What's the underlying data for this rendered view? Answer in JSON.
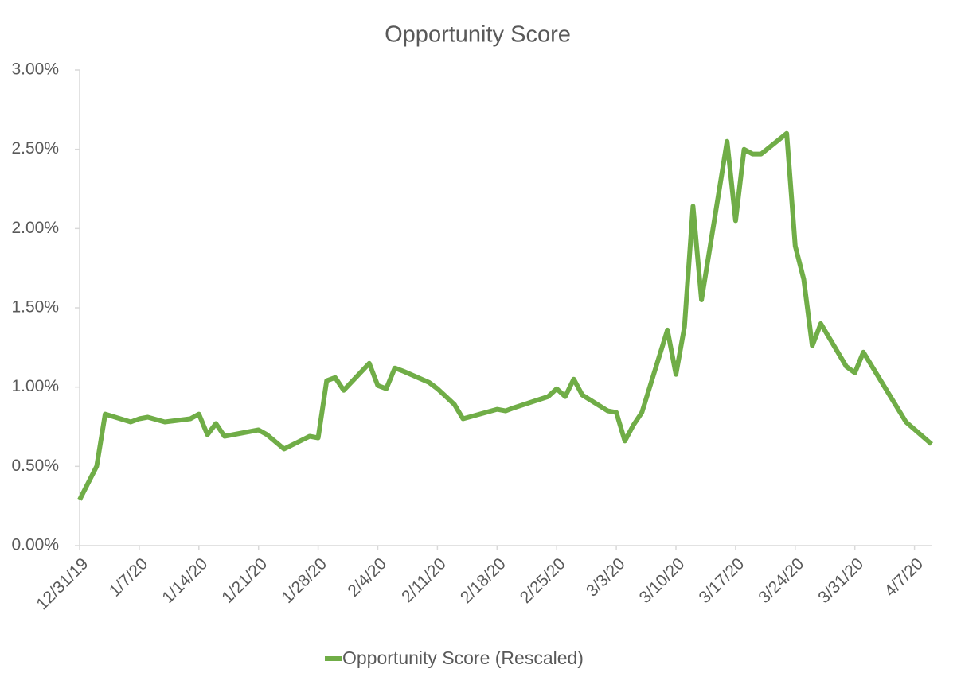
{
  "chart_data": {
    "type": "line",
    "title": "Opportunity Score",
    "x": [
      "12/31/19",
      "1/2/20",
      "1/3/20",
      "1/6/20",
      "1/7/20",
      "1/8/20",
      "1/10/20",
      "1/13/20",
      "1/14/20",
      "1/15/20",
      "1/16/20",
      "1/17/20",
      "1/21/20",
      "1/22/20",
      "1/24/20",
      "1/27/20",
      "1/28/20",
      "1/29/20",
      "1/30/20",
      "1/31/20",
      "2/3/20",
      "2/4/20",
      "2/5/20",
      "2/6/20",
      "2/7/20",
      "2/10/20",
      "2/11/20",
      "2/12/20",
      "2/13/20",
      "2/14/20",
      "2/18/20",
      "2/19/20",
      "2/20/20",
      "2/24/20",
      "2/25/20",
      "2/26/20",
      "2/27/20",
      "2/28/20",
      "3/2/20",
      "3/3/20",
      "3/4/20",
      "3/5/20",
      "3/6/20",
      "3/9/20",
      "3/10/20",
      "3/11/20",
      "3/12/20",
      "3/13/20",
      "3/16/20",
      "3/17/20",
      "3/18/20",
      "3/19/20",
      "3/20/20",
      "3/23/20",
      "3/24/20",
      "3/25/20",
      "3/26/20",
      "3/27/20",
      "3/30/20",
      "3/31/20",
      "4/1/20",
      "4/6/20",
      "4/9/20"
    ],
    "series": [
      {
        "name": "Opportunity Score (Rescaled)",
        "color": "#70ad47",
        "values": [
          0.29,
          0.5,
          0.83,
          0.78,
          0.8,
          0.81,
          0.78,
          0.8,
          0.83,
          0.7,
          0.77,
          0.69,
          0.73,
          0.7,
          0.61,
          0.69,
          0.68,
          1.04,
          1.06,
          0.98,
          1.15,
          1.01,
          0.99,
          1.12,
          1.1,
          1.03,
          0.99,
          0.94,
          0.89,
          0.8,
          0.86,
          0.85,
          0.87,
          0.94,
          0.99,
          0.94,
          1.05,
          0.95,
          0.85,
          0.84,
          0.66,
          0.76,
          0.84,
          1.36,
          1.08,
          1.38,
          2.14,
          1.55,
          2.55,
          2.05,
          2.5,
          2.47,
          2.47,
          2.6,
          1.89,
          1.68,
          1.26,
          1.4,
          1.13,
          1.09,
          1.22,
          0.78,
          0.64
        ]
      }
    ],
    "xlim": [
      "12/31/19",
      "4/9/20"
    ],
    "xticks": [
      "12/31/19",
      "1/7/20",
      "1/14/20",
      "1/21/20",
      "1/28/20",
      "2/4/20",
      "2/11/20",
      "2/18/20",
      "2/25/20",
      "3/3/20",
      "3/10/20",
      "3/17/20",
      "3/24/20",
      "3/31/20",
      "4/7/20"
    ],
    "ylim": [
      0,
      3
    ],
    "yticks": [
      {
        "value": 0,
        "label": "0.00%"
      },
      {
        "value": 0.5,
        "label": "0.50%"
      },
      {
        "value": 1,
        "label": "1.00%"
      },
      {
        "value": 1.5,
        "label": "1.50%"
      },
      {
        "value": 2,
        "label": "2.00%"
      },
      {
        "value": 2.5,
        "label": "2.50%"
      },
      {
        "value": 3,
        "label": "3.00%"
      }
    ],
    "grid": false,
    "legend": "bottom"
  }
}
